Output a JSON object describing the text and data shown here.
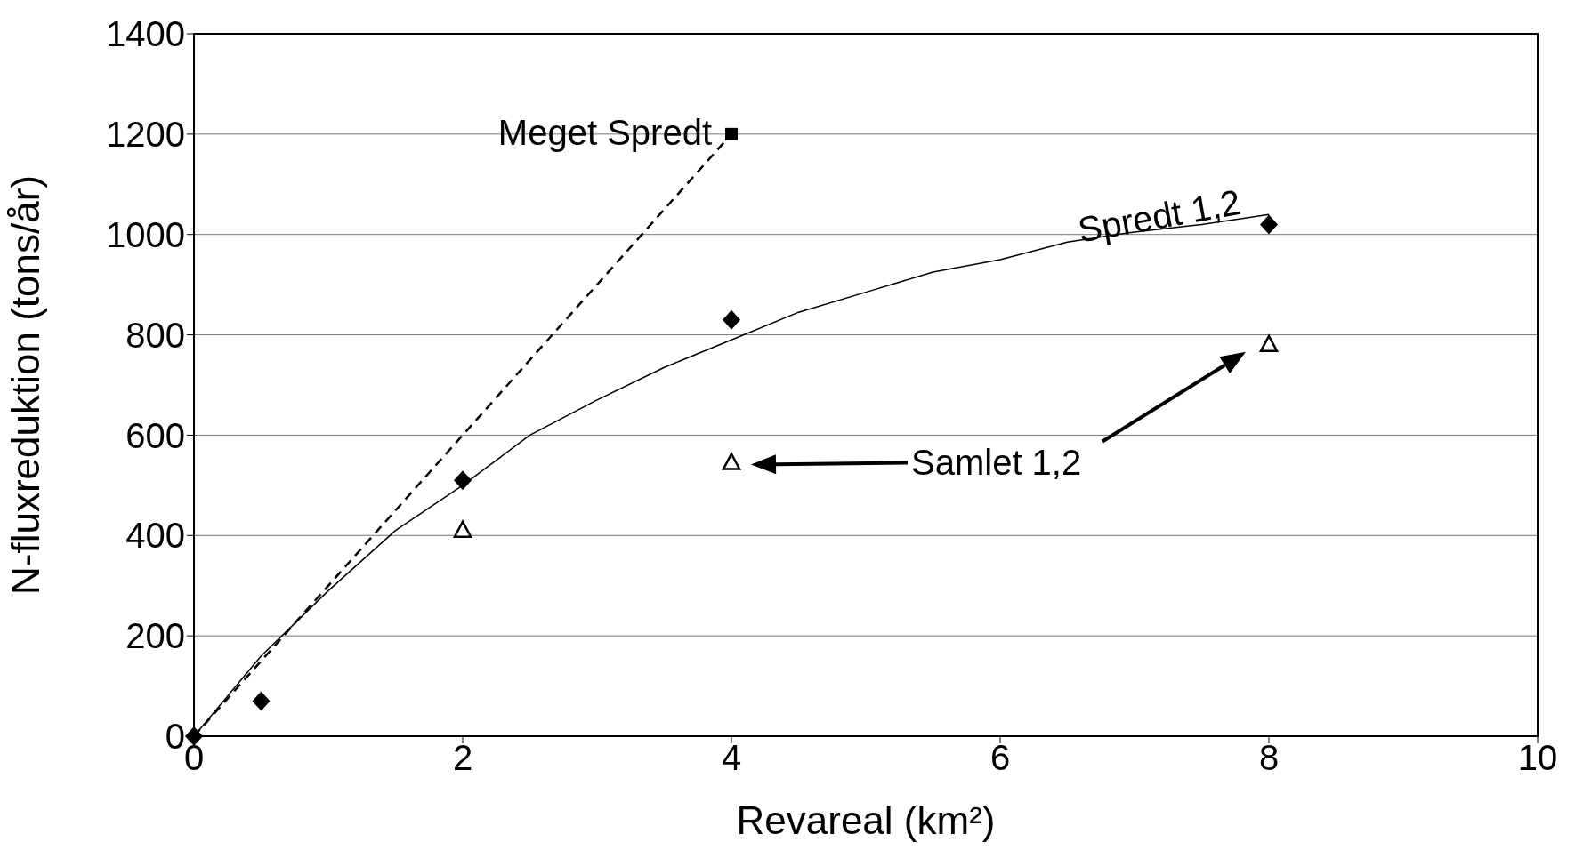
{
  "chart_data": {
    "type": "line",
    "xlabel": "Revareal (km²)",
    "ylabel": "N-fluxreduktion (tons/år)",
    "xlim": [
      0,
      10
    ],
    "xticks": [
      0,
      2,
      4,
      6,
      8,
      10
    ],
    "ylim": [
      0,
      1400
    ],
    "yticks": [
      0,
      200,
      400,
      600,
      800,
      1000,
      1200,
      1400
    ],
    "grid": "y",
    "series": [
      {
        "line_style": "dashed",
        "marker": "none",
        "color": "#000000",
        "x": [
          0,
          4
        ],
        "values": [
          0,
          1200
        ]
      },
      {
        "name": "Meget Spredt",
        "type": "scatter",
        "marker": "square",
        "color": "#000000",
        "x": [
          4
        ],
        "values": [
          1200
        ]
      },
      {
        "name": "Spredt 1,2",
        "type": "scatter",
        "marker": "diamond",
        "color": "#000000",
        "x": [
          0,
          0.5,
          2,
          4,
          8
        ],
        "values": [
          0,
          70,
          510,
          830,
          1020
        ]
      },
      {
        "line_style": "solid",
        "marker": "none",
        "color": "#000000",
        "x": [
          0,
          0.5,
          1,
          1.5,
          2,
          2.5,
          3,
          3.5,
          4,
          4.5,
          5,
          5.5,
          6,
          6.5,
          7,
          7.5,
          8
        ],
        "values": [
          0,
          160,
          290,
          410,
          500,
          600,
          670,
          735,
          790,
          845,
          885,
          925,
          950,
          985,
          1005,
          1020,
          1040
        ]
      },
      {
        "name": "Samlet 1,2",
        "type": "scatter",
        "marker": "triangle",
        "color": "#000000",
        "x": [
          2,
          4,
          8
        ],
        "values": [
          410,
          545,
          780
        ]
      }
    ]
  }
}
